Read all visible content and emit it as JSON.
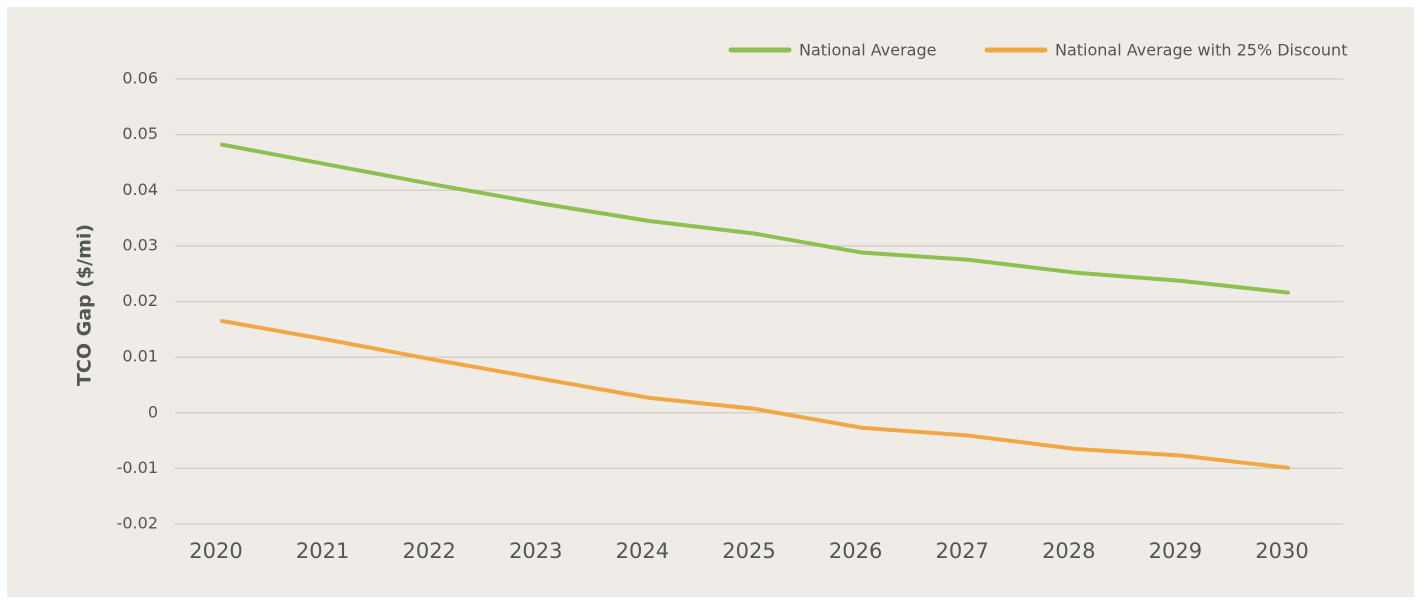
{
  "chart_data": {
    "type": "line",
    "y_label": "TCO Gap ($/mi)",
    "categories": [
      "2020",
      "2021",
      "2022",
      "2023",
      "2024",
      "2025",
      "2026",
      "2027",
      "2028",
      "2029",
      "2030"
    ],
    "series": [
      {
        "name": "National Average",
        "color": "#8dc04f",
        "values": [
          0.0482,
          0.0446,
          0.041,
          0.0376,
          0.0345,
          0.0322,
          0.0288,
          0.0275,
          0.0252,
          0.0237,
          0.0216
        ]
      },
      {
        "name": "National Average with 25% Discount",
        "color": "#f0a845",
        "values": [
          0.0165,
          0.0131,
          0.0095,
          0.0061,
          0.0027,
          0.0007,
          -0.0027,
          -0.0041,
          -0.0065,
          -0.0077,
          -0.0099
        ]
      }
    ],
    "ylim": [
      -0.02,
      0.06
    ],
    "yticks": [
      -0.02,
      -0.01,
      0,
      0.01,
      0.02,
      0.03,
      0.04,
      0.05,
      0.06
    ],
    "grid": true,
    "legend": "top-right"
  }
}
